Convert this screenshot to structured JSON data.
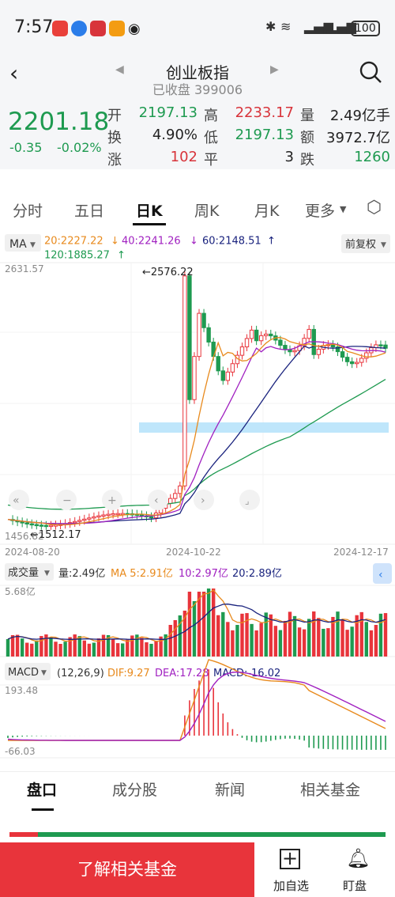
{
  "status": {
    "time": "7:57",
    "battery": "100"
  },
  "header": {
    "title": "创业板指",
    "subtitle": "已收盘 399006"
  },
  "quote": {
    "price": "2201.18",
    "change": "-0.35",
    "change_pct": "-0.02%",
    "fields": [
      {
        "k": "开",
        "v": "2197.13",
        "c": "green"
      },
      {
        "k": "高",
        "v": "2233.17",
        "c": "red"
      },
      {
        "k": "量",
        "v": "2.49亿手",
        "c": "dark"
      },
      {
        "k": "换",
        "v": "4.90%",
        "c": "dark"
      },
      {
        "k": "低",
        "v": "2197.13",
        "c": "green"
      },
      {
        "k": "额",
        "v": "3972.7亿",
        "c": "dark"
      },
      {
        "k": "涨",
        "v": "102",
        "c": "red"
      },
      {
        "k": "平",
        "v": "3",
        "c": "dark"
      },
      {
        "k": "跌",
        "v": "1260",
        "c": "green"
      }
    ]
  },
  "tabs": [
    "分时",
    "五日",
    "日K",
    "周K",
    "月K",
    "更多"
  ],
  "ma": {
    "label": "MA",
    "ma20": "20:2227.22",
    "ma40": "40:2241.26",
    "ma60": "60:2148.51",
    "ma120": "120:1885.27",
    "fq": "前复权"
  },
  "price_axis": {
    "max": "2631.57",
    "min": "1456.82",
    "high_label": "←2576.22",
    "low_label": "←1512.17"
  },
  "dates": [
    "2024-08-20",
    "2024-10-22",
    "2024-12-17"
  ],
  "volume": {
    "label": "成交量",
    "vol": "量:2.49亿",
    "ma5": "MA 5:2.91亿",
    "ma10": "10:2.97亿",
    "ma20": "20:2.89亿",
    "max": "5.68亿"
  },
  "macd": {
    "label": "MACD",
    "params": "(12,26,9)",
    "dif": "DIF:9.27",
    "dea": "DEA:17.28",
    "macd": "MACD:-16.02",
    "max": "193.48",
    "min": "-66.03"
  },
  "bottom_tabs": [
    "盘口",
    "成分股",
    "新闻",
    "相关基金"
  ],
  "footer": {
    "cta": "了解相关基金",
    "add": "加自选",
    "watch": "盯盘"
  }
}
